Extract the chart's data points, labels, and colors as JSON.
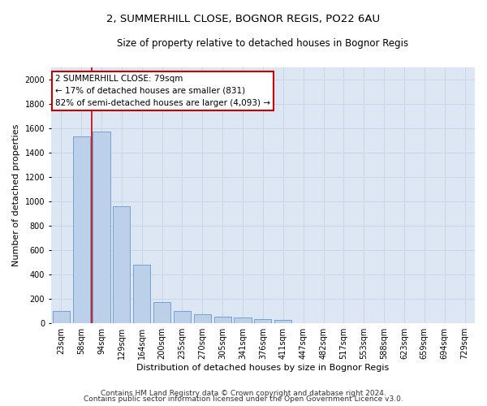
{
  "title1": "2, SUMMERHILL CLOSE, BOGNOR REGIS, PO22 6AU",
  "title2": "Size of property relative to detached houses in Bognor Regis",
  "xlabel": "Distribution of detached houses by size in Bognor Regis",
  "ylabel": "Number of detached properties",
  "categories": [
    "23sqm",
    "58sqm",
    "94sqm",
    "129sqm",
    "164sqm",
    "200sqm",
    "235sqm",
    "270sqm",
    "305sqm",
    "341sqm",
    "376sqm",
    "411sqm",
    "447sqm",
    "482sqm",
    "517sqm",
    "553sqm",
    "588sqm",
    "623sqm",
    "659sqm",
    "694sqm",
    "729sqm"
  ],
  "values": [
    100,
    1530,
    1570,
    960,
    480,
    170,
    100,
    70,
    50,
    45,
    30,
    25,
    0,
    0,
    0,
    0,
    0,
    0,
    0,
    0,
    0
  ],
  "bar_color": "#bdd0e9",
  "bar_edge_color": "#6699cc",
  "vline_color": "#cc0000",
  "vline_xindex": 1.5,
  "annotation_text": "2 SUMMERHILL CLOSE: 79sqm\n← 17% of detached houses are smaller (831)\n82% of semi-detached houses are larger (4,093) →",
  "annotation_box_facecolor": "#ffffff",
  "annotation_box_edgecolor": "#cc0000",
  "ylim": [
    0,
    2100
  ],
  "yticks": [
    0,
    200,
    400,
    600,
    800,
    1000,
    1200,
    1400,
    1600,
    1800,
    2000
  ],
  "grid_color": "#c8d4e8",
  "background_color": "#dde6f3",
  "footer1": "Contains HM Land Registry data © Crown copyright and database right 2024.",
  "footer2": "Contains public sector information licensed under the Open Government Licence v3.0.",
  "title1_fontsize": 9.5,
  "title2_fontsize": 8.5,
  "xlabel_fontsize": 8,
  "ylabel_fontsize": 8,
  "tick_fontsize": 7,
  "footer_fontsize": 6.5,
  "annotation_fontsize": 7.5
}
